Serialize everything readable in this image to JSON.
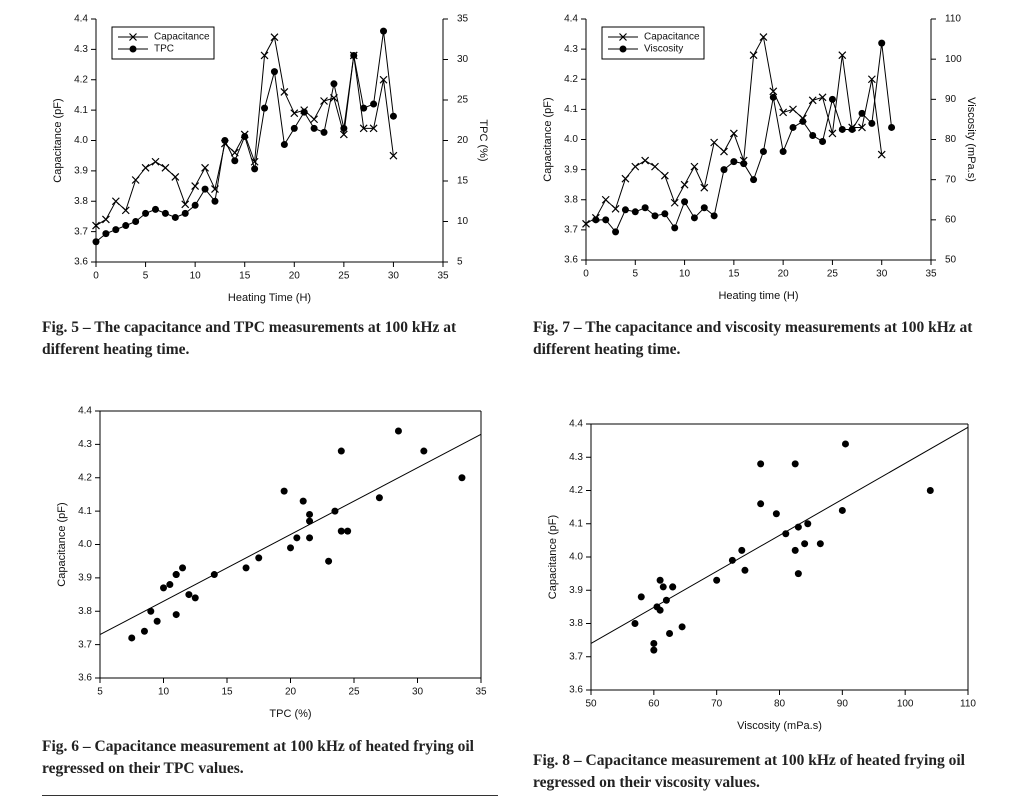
{
  "chart_data": [
    {
      "type": "line",
      "caption": "Fig. 5 – The capacitance and TPC measurements at 100 kHz at different heating time.",
      "xlabel": "Heating Time (H)",
      "ylabel": "Capacitance (pF)",
      "y2label": "TPC (%)",
      "x": [
        0,
        1,
        2,
        3,
        4,
        5,
        6,
        7,
        8,
        9,
        10,
        11,
        12,
        13,
        14,
        15,
        16,
        17,
        18,
        19,
        20,
        21,
        22,
        23,
        24,
        25,
        26,
        27,
        28,
        29,
        30
      ],
      "xlim": [
        0,
        35
      ],
      "xticks": [
        0,
        5,
        10,
        15,
        20,
        25,
        30,
        35
      ],
      "ylim": [
        3.6,
        4.4
      ],
      "yticks": [
        3.6,
        3.7,
        3.8,
        3.9,
        {
          "value": 4,
          "label": "4.0"
        },
        4.1,
        4.2,
        4.3,
        4.4
      ],
      "y2lim": [
        5,
        35
      ],
      "y2ticks": [
        5,
        10,
        15,
        20,
        25,
        30,
        35
      ],
      "legend": "upper left",
      "series": [
        {
          "name": "Capacitance",
          "color": "#000000",
          "marker": "x",
          "values": [
            3.72,
            3.74,
            3.8,
            3.77,
            3.87,
            3.91,
            3.93,
            3.91,
            3.88,
            3.79,
            3.85,
            3.91,
            3.84,
            3.99,
            3.96,
            4.02,
            3.93,
            4.28,
            4.34,
            4.16,
            4.09,
            4.1,
            4.07,
            4.13,
            4.14,
            4.02,
            4.28,
            4.04,
            4.04,
            4.2,
            3.95
          ]
        },
        {
          "name": "TPC",
          "color": "#000000",
          "marker": "o",
          "axis": "y2",
          "values": [
            7.5,
            8.5,
            9,
            9.5,
            10,
            11,
            11.5,
            11,
            10.5,
            11,
            12,
            14,
            12.5,
            20,
            17.5,
            20.5,
            16.5,
            24,
            28.5,
            19.5,
            21.5,
            23.5,
            21.5,
            21,
            27,
            21.5,
            30.5,
            24,
            24.5,
            33.5,
            23
          ]
        }
      ]
    },
    {
      "type": "line",
      "caption": "Fig. 7 – The capacitance and viscosity measurements at 100 kHz at different heating time.",
      "xlabel": "Heating time (H)",
      "ylabel": "Capacitance (pF)",
      "y2label": "Viscosity (mPa.s)",
      "x": [
        0,
        1,
        2,
        3,
        4,
        5,
        6,
        7,
        8,
        9,
        10,
        11,
        12,
        13,
        14,
        15,
        16,
        17,
        18,
        19,
        20,
        21,
        22,
        23,
        24,
        25,
        26,
        27,
        28,
        29,
        30
      ],
      "xlim": [
        0,
        35
      ],
      "xticks": [
        0,
        5,
        10,
        15,
        20,
        25,
        30,
        35
      ],
      "ylim": [
        3.6,
        4.4
      ],
      "yticks": [
        3.6,
        3.7,
        3.8,
        3.9,
        {
          "value": 4,
          "label": "4.0"
        },
        4.1,
        4.2,
        4.3,
        4.4
      ],
      "y2lim": [
        50,
        110
      ],
      "y2ticks": [
        50,
        60,
        70,
        80,
        90,
        100,
        110
      ],
      "legend": "upper left",
      "series": [
        {
          "name": "Capacitance",
          "color": "#000000",
          "marker": "x",
          "values": [
            3.72,
            3.74,
            3.8,
            3.77,
            3.87,
            3.91,
            3.93,
            3.91,
            3.88,
            3.79,
            3.85,
            3.91,
            3.84,
            3.99,
            3.96,
            4.02,
            3.93,
            4.28,
            4.34,
            4.16,
            4.09,
            4.1,
            4.07,
            4.13,
            4.14,
            4.02,
            4.28,
            4.04,
            4.04,
            4.2,
            3.95
          ]
        },
        {
          "name": "Viscosity",
          "color": "#000000",
          "marker": "o",
          "axis": "y2",
          "x": [
            1,
            2,
            3,
            4,
            5,
            6,
            7,
            8,
            9,
            10,
            11,
            12,
            13,
            14,
            15,
            16,
            17,
            18,
            19,
            20,
            21,
            22,
            23,
            24,
            25,
            26,
            27,
            28,
            29,
            30,
            31
          ],
          "values": [
            60,
            60,
            57,
            62.5,
            62,
            63,
            61,
            61.5,
            58,
            64.5,
            60.5,
            63,
            61,
            72.5,
            74.5,
            74,
            70,
            77,
            90.5,
            77,
            83,
            84.5,
            81,
            79.5,
            90,
            82.5,
            82.5,
            86.5,
            84,
            104,
            83
          ]
        }
      ]
    },
    {
      "type": "scatter",
      "caption": "Fig. 6 – Capacitance measurement at 100 kHz of heated frying oil regressed on their TPC values.",
      "xlabel": "TPC (%)",
      "ylabel": "Capacitance (pF)",
      "x": [
        7.5,
        8.5,
        9,
        9.5,
        10,
        11,
        11.5,
        11,
        10.5,
        11,
        12,
        14,
        12.5,
        20,
        17.5,
        20.5,
        16.5,
        24,
        28.5,
        19.5,
        21.5,
        23.5,
        21.5,
        21,
        27,
        21.5,
        30.5,
        24,
        24.5,
        33.5,
        23
      ],
      "y": [
        3.72,
        3.74,
        3.8,
        3.77,
        3.87,
        3.91,
        3.93,
        3.91,
        3.88,
        3.79,
        3.85,
        3.91,
        3.84,
        3.99,
        3.96,
        4.02,
        3.93,
        4.28,
        4.34,
        4.16,
        4.09,
        4.1,
        4.07,
        4.13,
        4.14,
        4.02,
        4.28,
        4.04,
        4.04,
        4.2,
        3.95
      ],
      "color": "#000000",
      "trendline": {
        "x": [
          5,
          35
        ],
        "y": [
          3.73,
          4.33
        ]
      },
      "xlim": [
        5,
        35
      ],
      "xticks": [
        5,
        10,
        15,
        20,
        25,
        30,
        35
      ],
      "ylim": [
        3.6,
        4.4
      ],
      "yticks": [
        3.6,
        3.7,
        3.8,
        3.9,
        {
          "value": 4,
          "label": "4.0"
        },
        4.1,
        4.2,
        4.3,
        4.4
      ]
    },
    {
      "type": "scatter",
      "caption": "Fig. 8 – Capacitance measurement at 100 kHz of heated frying oil regressed on their viscosity values.",
      "xlabel": "Viscosity (mPa.s)",
      "ylabel": "Capacitance (pF)",
      "x": [
        60,
        60,
        57,
        62.5,
        62,
        63,
        61,
        61.5,
        58,
        64.5,
        60.5,
        63,
        61,
        72.5,
        74.5,
        74,
        70,
        77,
        90.5,
        77,
        83,
        84.5,
        81,
        79.5,
        90,
        82.5,
        82.5,
        86.5,
        84,
        104,
        83
      ],
      "y": [
        3.72,
        3.74,
        3.8,
        3.77,
        3.87,
        3.91,
        3.93,
        3.91,
        3.88,
        3.79,
        3.85,
        3.91,
        3.84,
        3.99,
        3.96,
        4.02,
        3.93,
        4.28,
        4.34,
        4.16,
        4.09,
        4.1,
        4.07,
        4.13,
        4.14,
        4.02,
        4.28,
        4.04,
        4.04,
        4.2,
        3.95
      ],
      "color": "#000000",
      "trendline": {
        "x": [
          50,
          110
        ],
        "y": [
          3.74,
          4.39
        ]
      },
      "xlim": [
        50,
        110
      ],
      "xticks": [
        50,
        60,
        70,
        80,
        90,
        100,
        110
      ],
      "ylim": [
        3.6,
        4.4
      ],
      "yticks": [
        3.6,
        3.7,
        3.8,
        3.9,
        {
          "value": 4,
          "label": "4.0"
        },
        4.1,
        4.2,
        4.3,
        4.4
      ]
    }
  ]
}
